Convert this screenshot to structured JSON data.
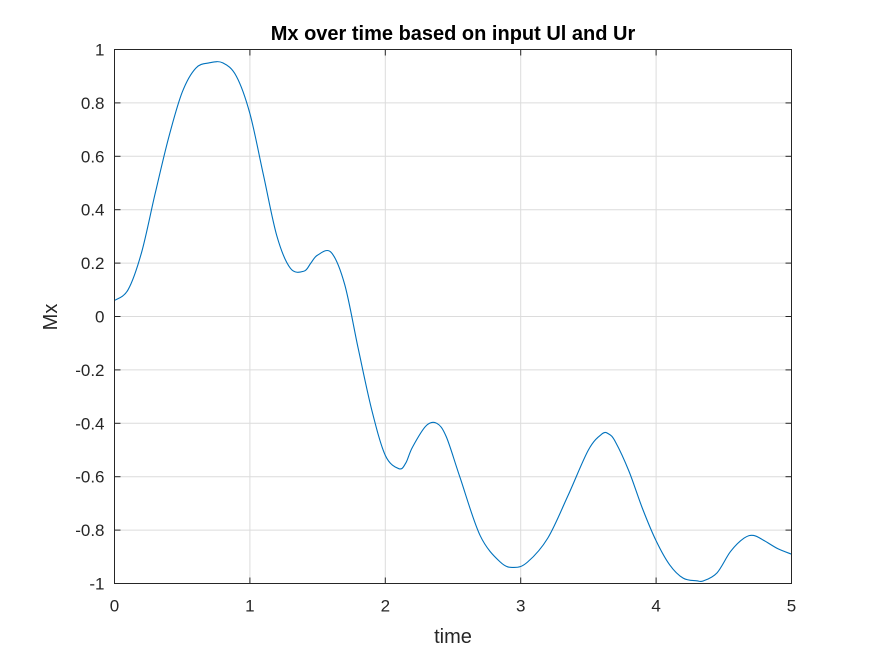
{
  "chart_data": {
    "type": "line",
    "title": "Mx over time based on input Ul and Ur",
    "xlabel": "time",
    "ylabel": "Mx",
    "xlim": [
      0,
      5
    ],
    "ylim": [
      -1,
      1
    ],
    "xticks": [
      0,
      1,
      2,
      3,
      4,
      5
    ],
    "xtick_labels": [
      "0",
      "1",
      "2",
      "3",
      "4",
      "5"
    ],
    "yticks": [
      1,
      0.8,
      0.6,
      0.4,
      0.2,
      0,
      -0.2,
      -0.4,
      -0.6,
      -0.8,
      -1
    ],
    "ytick_labels": [
      "1",
      "0.8",
      "0.6",
      "0.4",
      "0.2",
      "0",
      "-0.2",
      "-0.4",
      "-0.6",
      "-0.8",
      "-1"
    ],
    "grid": true,
    "series": [
      {
        "color": "#0072BD",
        "x": [
          0,
          0.1,
          0.2,
          0.3,
          0.4,
          0.5,
          0.6,
          0.7,
          0.8,
          0.9,
          1.0,
          1.1,
          1.2,
          1.3,
          1.4,
          1.45,
          1.5,
          1.6,
          1.7,
          1.8,
          1.9,
          2.0,
          2.1,
          2.15,
          2.2,
          2.3,
          2.38,
          2.45,
          2.55,
          2.7,
          2.85,
          2.95,
          3.05,
          3.2,
          3.35,
          3.5,
          3.6,
          3.65,
          3.7,
          3.8,
          3.9,
          4.0,
          4.1,
          4.2,
          4.3,
          4.35,
          4.45,
          4.55,
          4.65,
          4.72,
          4.8,
          4.9,
          5.0
        ],
        "y": [
          0.06,
          0.1,
          0.24,
          0.46,
          0.67,
          0.84,
          0.93,
          0.95,
          0.95,
          0.9,
          0.76,
          0.53,
          0.3,
          0.18,
          0.17,
          0.2,
          0.23,
          0.24,
          0.12,
          -0.12,
          -0.35,
          -0.52,
          -0.57,
          -0.55,
          -0.49,
          -0.41,
          -0.4,
          -0.45,
          -0.6,
          -0.82,
          -0.92,
          -0.94,
          -0.92,
          -0.83,
          -0.67,
          -0.5,
          -0.44,
          -0.44,
          -0.47,
          -0.58,
          -0.72,
          -0.84,
          -0.93,
          -0.98,
          -0.99,
          -0.99,
          -0.96,
          -0.88,
          -0.83,
          -0.82,
          -0.84,
          -0.87,
          -0.89
        ]
      }
    ]
  }
}
